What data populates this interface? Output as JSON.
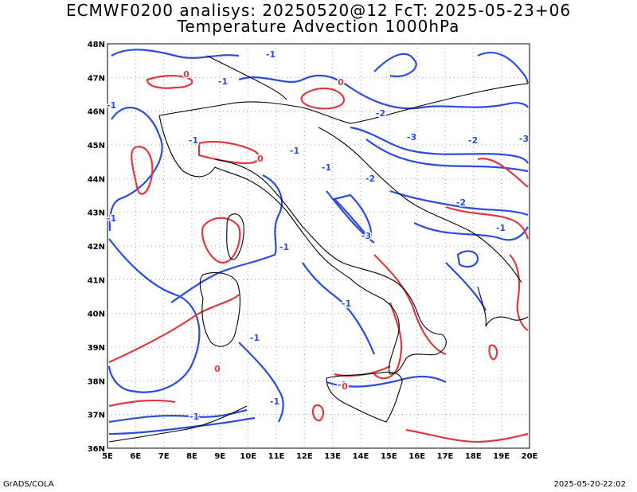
{
  "header": {
    "line1": "ECMWF0200 analisys: 20250520@12 FcT: 2025-05-23+06",
    "line2": "Temperature Advection 1000hPa"
  },
  "footer": {
    "left": "GrADS/COLA",
    "right": "2025-05-20-22:02"
  },
  "map": {
    "lon_labels": [
      "5E",
      "6E",
      "7E",
      "8E",
      "9E",
      "10E",
      "11E",
      "12E",
      "13E",
      "14E",
      "15E",
      "16E",
      "17E",
      "18E",
      "19E",
      "20E"
    ],
    "lat_labels": [
      "36N",
      "37N",
      "38N",
      "39N",
      "40N",
      "41N",
      "42N",
      "43N",
      "44N",
      "45N",
      "46N",
      "47N",
      "48N"
    ],
    "colors": {
      "positive": "#e0383f",
      "negative": "#2b4ce0",
      "coast": "#000000",
      "grid": "#a0a0a0"
    },
    "contour_labels": [
      {
        "text": "-1",
        "color": "negative"
      },
      {
        "text": "-1",
        "color": "negative"
      },
      {
        "text": "-1",
        "color": "negative"
      },
      {
        "text": "-1",
        "color": "negative"
      },
      {
        "text": "-1",
        "color": "negative"
      },
      {
        "text": "-2",
        "color": "negative"
      },
      {
        "text": "-3",
        "color": "negative"
      },
      {
        "text": "-2",
        "color": "negative"
      },
      {
        "text": "-3",
        "color": "negative"
      },
      {
        "text": "-1",
        "color": "negative"
      },
      {
        "text": "-2",
        "color": "negative"
      },
      {
        "text": "-1",
        "color": "negative"
      },
      {
        "text": "-1",
        "color": "negative"
      },
      {
        "text": "-1",
        "color": "negative"
      },
      {
        "text": "-1",
        "color": "negative"
      },
      {
        "text": "-1",
        "color": "negative"
      },
      {
        "text": "-1",
        "color": "negative"
      },
      {
        "text": "-1",
        "color": "negative"
      },
      {
        "text": "-2",
        "color": "negative"
      },
      {
        "text": "-3",
        "color": "negative"
      },
      {
        "text": "-1",
        "color": "negative"
      },
      {
        "text": "0",
        "color": "positive"
      },
      {
        "text": "0",
        "color": "positive"
      },
      {
        "text": "0",
        "color": "positive"
      },
      {
        "text": "0",
        "color": "positive"
      },
      {
        "text": "0",
        "color": "positive"
      }
    ]
  }
}
